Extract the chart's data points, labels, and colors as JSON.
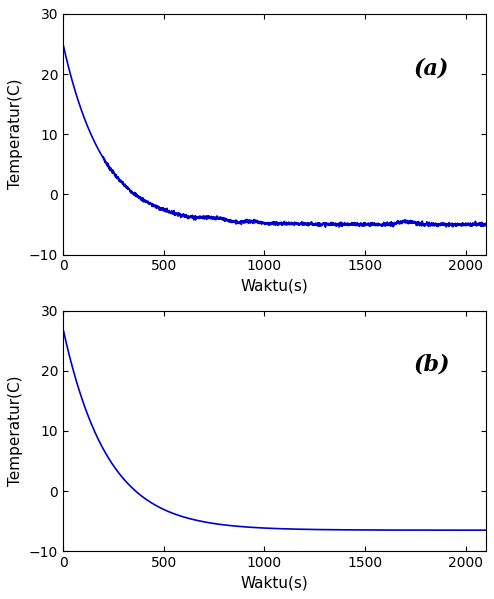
{
  "title_a": "(a)",
  "title_b": "(b)",
  "xlabel": "Waktu(s)",
  "ylabel": "Temperatur(C)",
  "xlim": [
    0,
    2100
  ],
  "ylim_a": [
    -10,
    30
  ],
  "ylim_b": [
    -10,
    30
  ],
  "xticks": [
    0,
    500,
    1000,
    1500,
    2000
  ],
  "yticks_a": [
    -10,
    0,
    10,
    20,
    30
  ],
  "yticks_b": [
    -10,
    0,
    10,
    20,
    30
  ],
  "line_color": "#0000cc",
  "bg_color": "#ffffff",
  "start_a": 25.0,
  "steady_a": -5.0,
  "tau_a": 200.0,
  "start_b": 27.0,
  "steady_b": -6.5,
  "tau_b": 220.0,
  "label_fontsize": 11,
  "tick_fontsize": 10,
  "annotation_fontsize": 16,
  "line_width": 1.2,
  "n_points": 2100
}
